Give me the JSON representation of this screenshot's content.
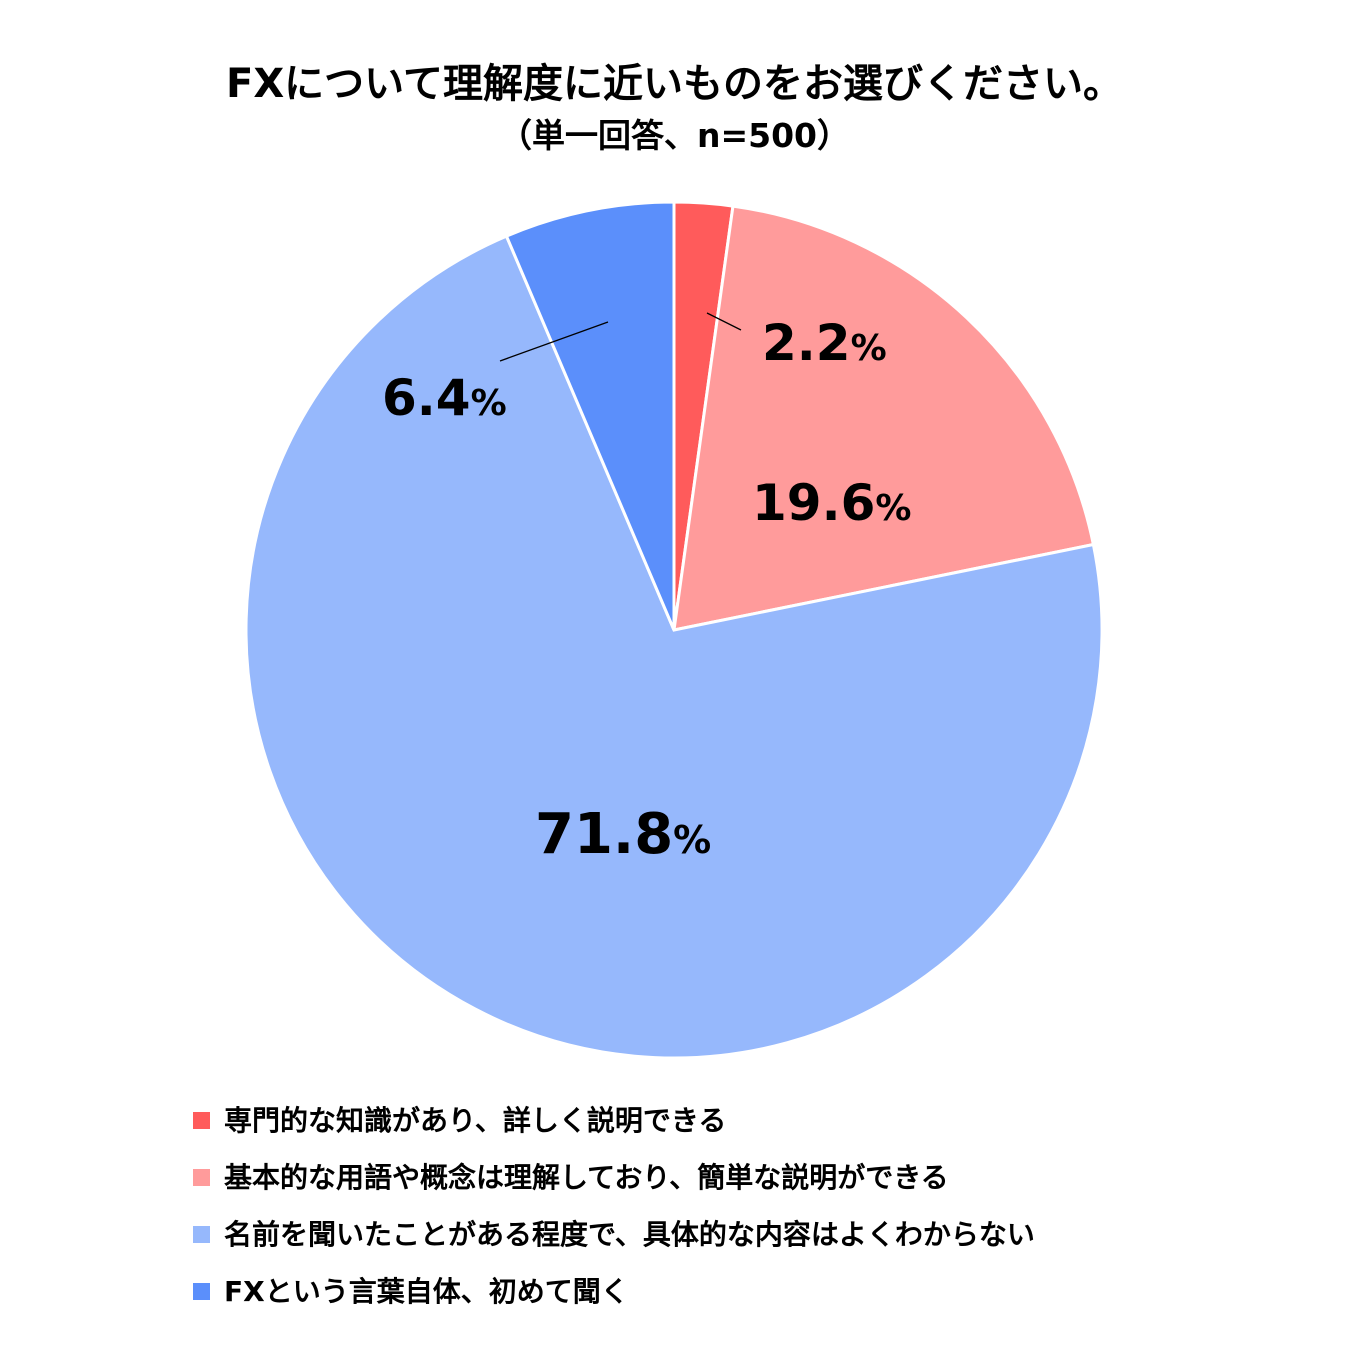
{
  "chart_data": {
    "type": "pie",
    "title": "FXについて理解度に近いものをお選びください。",
    "subtitle": "（単一回答、n=500）",
    "unit": "%",
    "legend_position": "bottom",
    "slices": [
      {
        "name": "専門的な知識があり、詳しく説明できる",
        "value": 2.2,
        "label": "2.2",
        "color": "#FF5B5B"
      },
      {
        "name": "基本的な用語や概念は理解しており、簡単な説明ができる",
        "value": 19.6,
        "label": "19.6",
        "color": "#FF9B9B"
      },
      {
        "name": "名前を聞いたことがある程度で、具体的な内容はよくわからない",
        "value": 71.8,
        "label": "71.8",
        "color": "#96B8FC"
      },
      {
        "name": "FXという言葉自体、初めて聞く",
        "value": 6.4,
        "label": "6.4",
        "color": "#5B8FFB"
      }
    ]
  }
}
